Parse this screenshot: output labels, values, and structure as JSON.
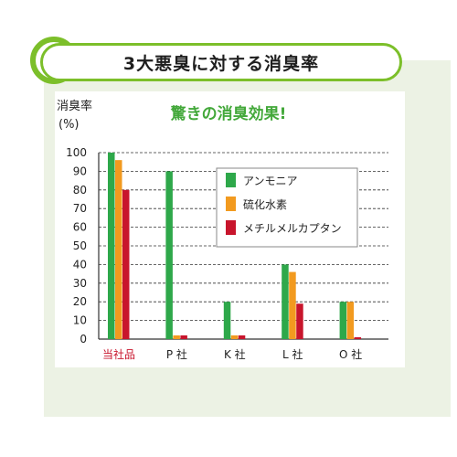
{
  "header": {
    "title": "3大悪臭に対する消臭率"
  },
  "colors": {
    "accent": "#7cbf2a",
    "ammonia": "#2ea84a",
    "h2s": "#f29a1f",
    "mercaptan": "#c8152c",
    "highlight_label": "#c8152c"
  },
  "chart_data": {
    "type": "bar",
    "title": "驚きの消臭効果!",
    "ylabel_line1": "消臭率",
    "ylabel_line2": "(%)",
    "ylim": [
      0,
      100
    ],
    "yticks": [
      0,
      10,
      20,
      30,
      40,
      50,
      60,
      70,
      80,
      90,
      100
    ],
    "grid": true,
    "legend_position": "upper-right",
    "categories": [
      "当社品",
      "P 社",
      "K 社",
      "L 社",
      "O 社"
    ],
    "series": [
      {
        "name": "アンモニア",
        "color": "#2ea84a",
        "values": [
          100,
          90,
          20,
          40,
          20
        ]
      },
      {
        "name": "硫化水素",
        "color": "#f29a1f",
        "values": [
          96,
          2,
          2,
          36,
          20
        ]
      },
      {
        "name": "メチルメルカプタン",
        "color": "#c8152c",
        "values": [
          80,
          2,
          2,
          19,
          1
        ]
      }
    ]
  }
}
